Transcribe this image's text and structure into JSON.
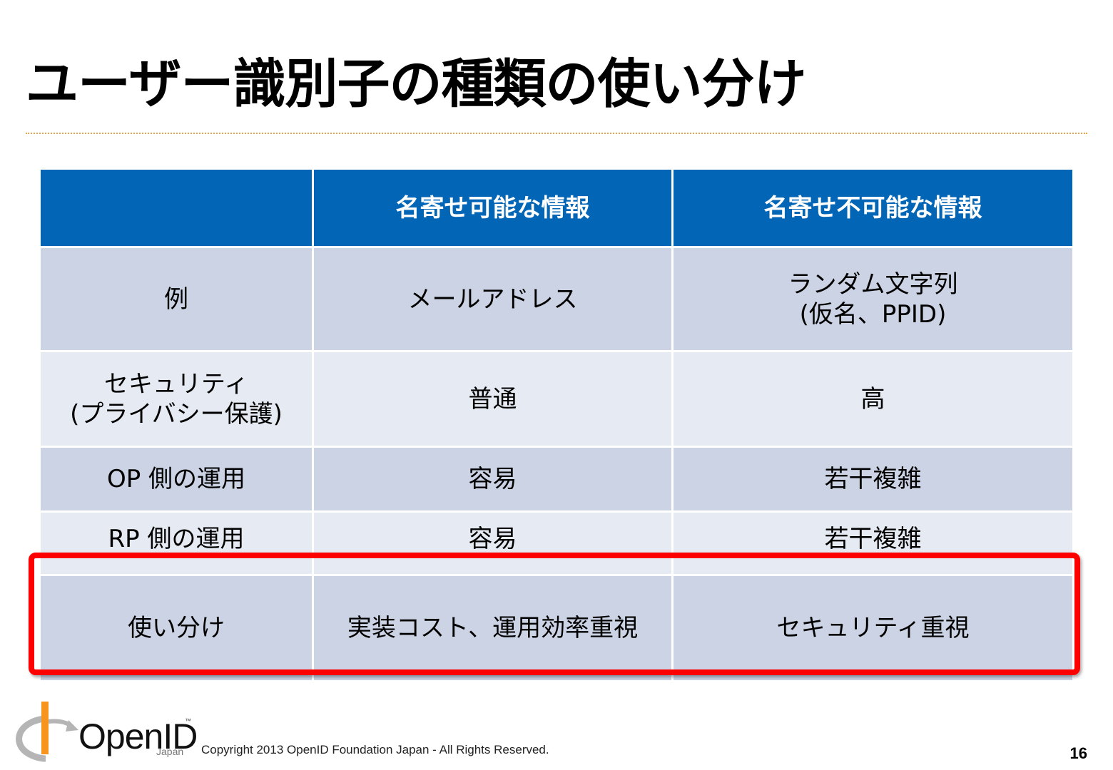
{
  "slide": {
    "title": "ユーザー識別子の種類の使い分け",
    "page_number": "16",
    "copyright": "Copyright  2013  OpenID Foundation Japan - All Rights Reserved.",
    "logo": {
      "name": "OpenID",
      "tm": "™",
      "sub": "Japan",
      "accent": "#f7941d",
      "gray": "#b5b5b5"
    }
  },
  "table": {
    "header": [
      "",
      "名寄せ可能な情報",
      "名寄せ不可能な情報"
    ],
    "rows": [
      {
        "label": [
          "例"
        ],
        "c1": [
          "メールアドレス"
        ],
        "c2": [
          "ランダム文字列",
          "(仮名、PPID)"
        ]
      },
      {
        "label": [
          "セキュリティ",
          "(プライバシー保護)"
        ],
        "c1": [
          "普通"
        ],
        "c2": [
          "高"
        ]
      },
      {
        "label": [
          "OP 側の運用"
        ],
        "c1": [
          "容易"
        ],
        "c2": [
          "若干複雑"
        ]
      },
      {
        "label": [
          "RP 側の運用"
        ],
        "c1": [
          "容易"
        ],
        "c2": [
          "若干複雑"
        ]
      },
      {
        "label": [
          "使い分け"
        ],
        "c1": [
          "実装コスト、運用効率重視"
        ],
        "c2": [
          "セキュリティ重視"
        ]
      }
    ]
  },
  "colors": {
    "header_bg": "#0365b5",
    "row_dark": "#cbd3e5",
    "row_light": "#e6eaf3",
    "highlight": "#ff0000",
    "divider": "#e8a24a"
  }
}
